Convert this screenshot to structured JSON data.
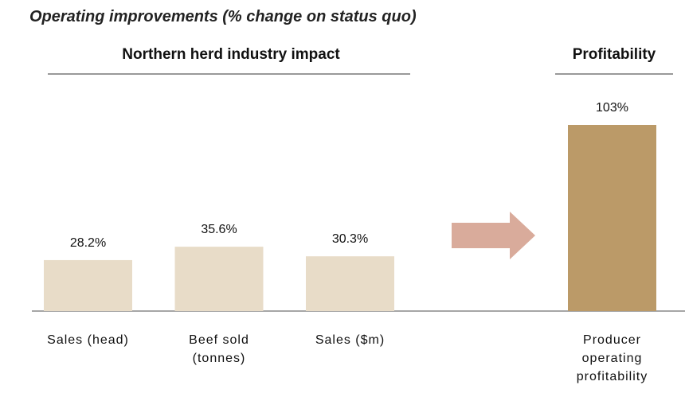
{
  "chart_data": {
    "type": "bar",
    "title": "Operating improvements (% change on status quo)",
    "groups": [
      "Northern herd industry impact",
      "Profitability"
    ],
    "categories": [
      "Sales (head)",
      "Beef sold (tonnes)",
      "Sales ($m)",
      "Producer operating profitability"
    ],
    "values": [
      28.2,
      35.6,
      30.3,
      103
    ],
    "value_labels": [
      "28.2%",
      "35.6%",
      "30.3%",
      "103%"
    ],
    "colors": [
      "#e8dcc8",
      "#e8dcc8",
      "#e8dcc8",
      "#bb9a68"
    ]
  }
}
